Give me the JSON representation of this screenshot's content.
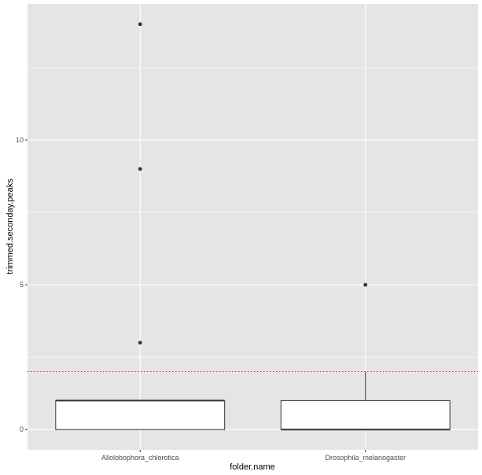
{
  "chart_data": {
    "type": "boxplot",
    "xlabel": "folder.name",
    "ylabel": "trimmed.seconday.peaks",
    "categories": [
      "Allolobophora_chlorotica",
      "Drosophila_melanogaster"
    ],
    "boxes": [
      {
        "category": "Allolobophora_chlorotica",
        "min": 0,
        "q1": 0,
        "median": 1,
        "q3": 1,
        "max": 1,
        "outliers": [
          3,
          9,
          14
        ]
      },
      {
        "category": "Drosophila_melanogaster",
        "min": 0,
        "q1": 0,
        "median": 0,
        "q3": 1,
        "max": 2,
        "outliers": [
          5
        ]
      }
    ],
    "reference_line": {
      "y": 2,
      "color": "#ff0000",
      "style": "dotted"
    },
    "ylim": [
      -0.7,
      14.7
    ],
    "yticks": [
      0,
      5,
      10
    ],
    "ytick_labels": [
      "0",
      "5",
      "10"
    ],
    "grid": true,
    "colors": {
      "panel_background": "#e5e5e5",
      "grid": "#ffffff",
      "box_fill": "#ffffff",
      "box_line": "#333333",
      "outlier": "#333333"
    }
  }
}
